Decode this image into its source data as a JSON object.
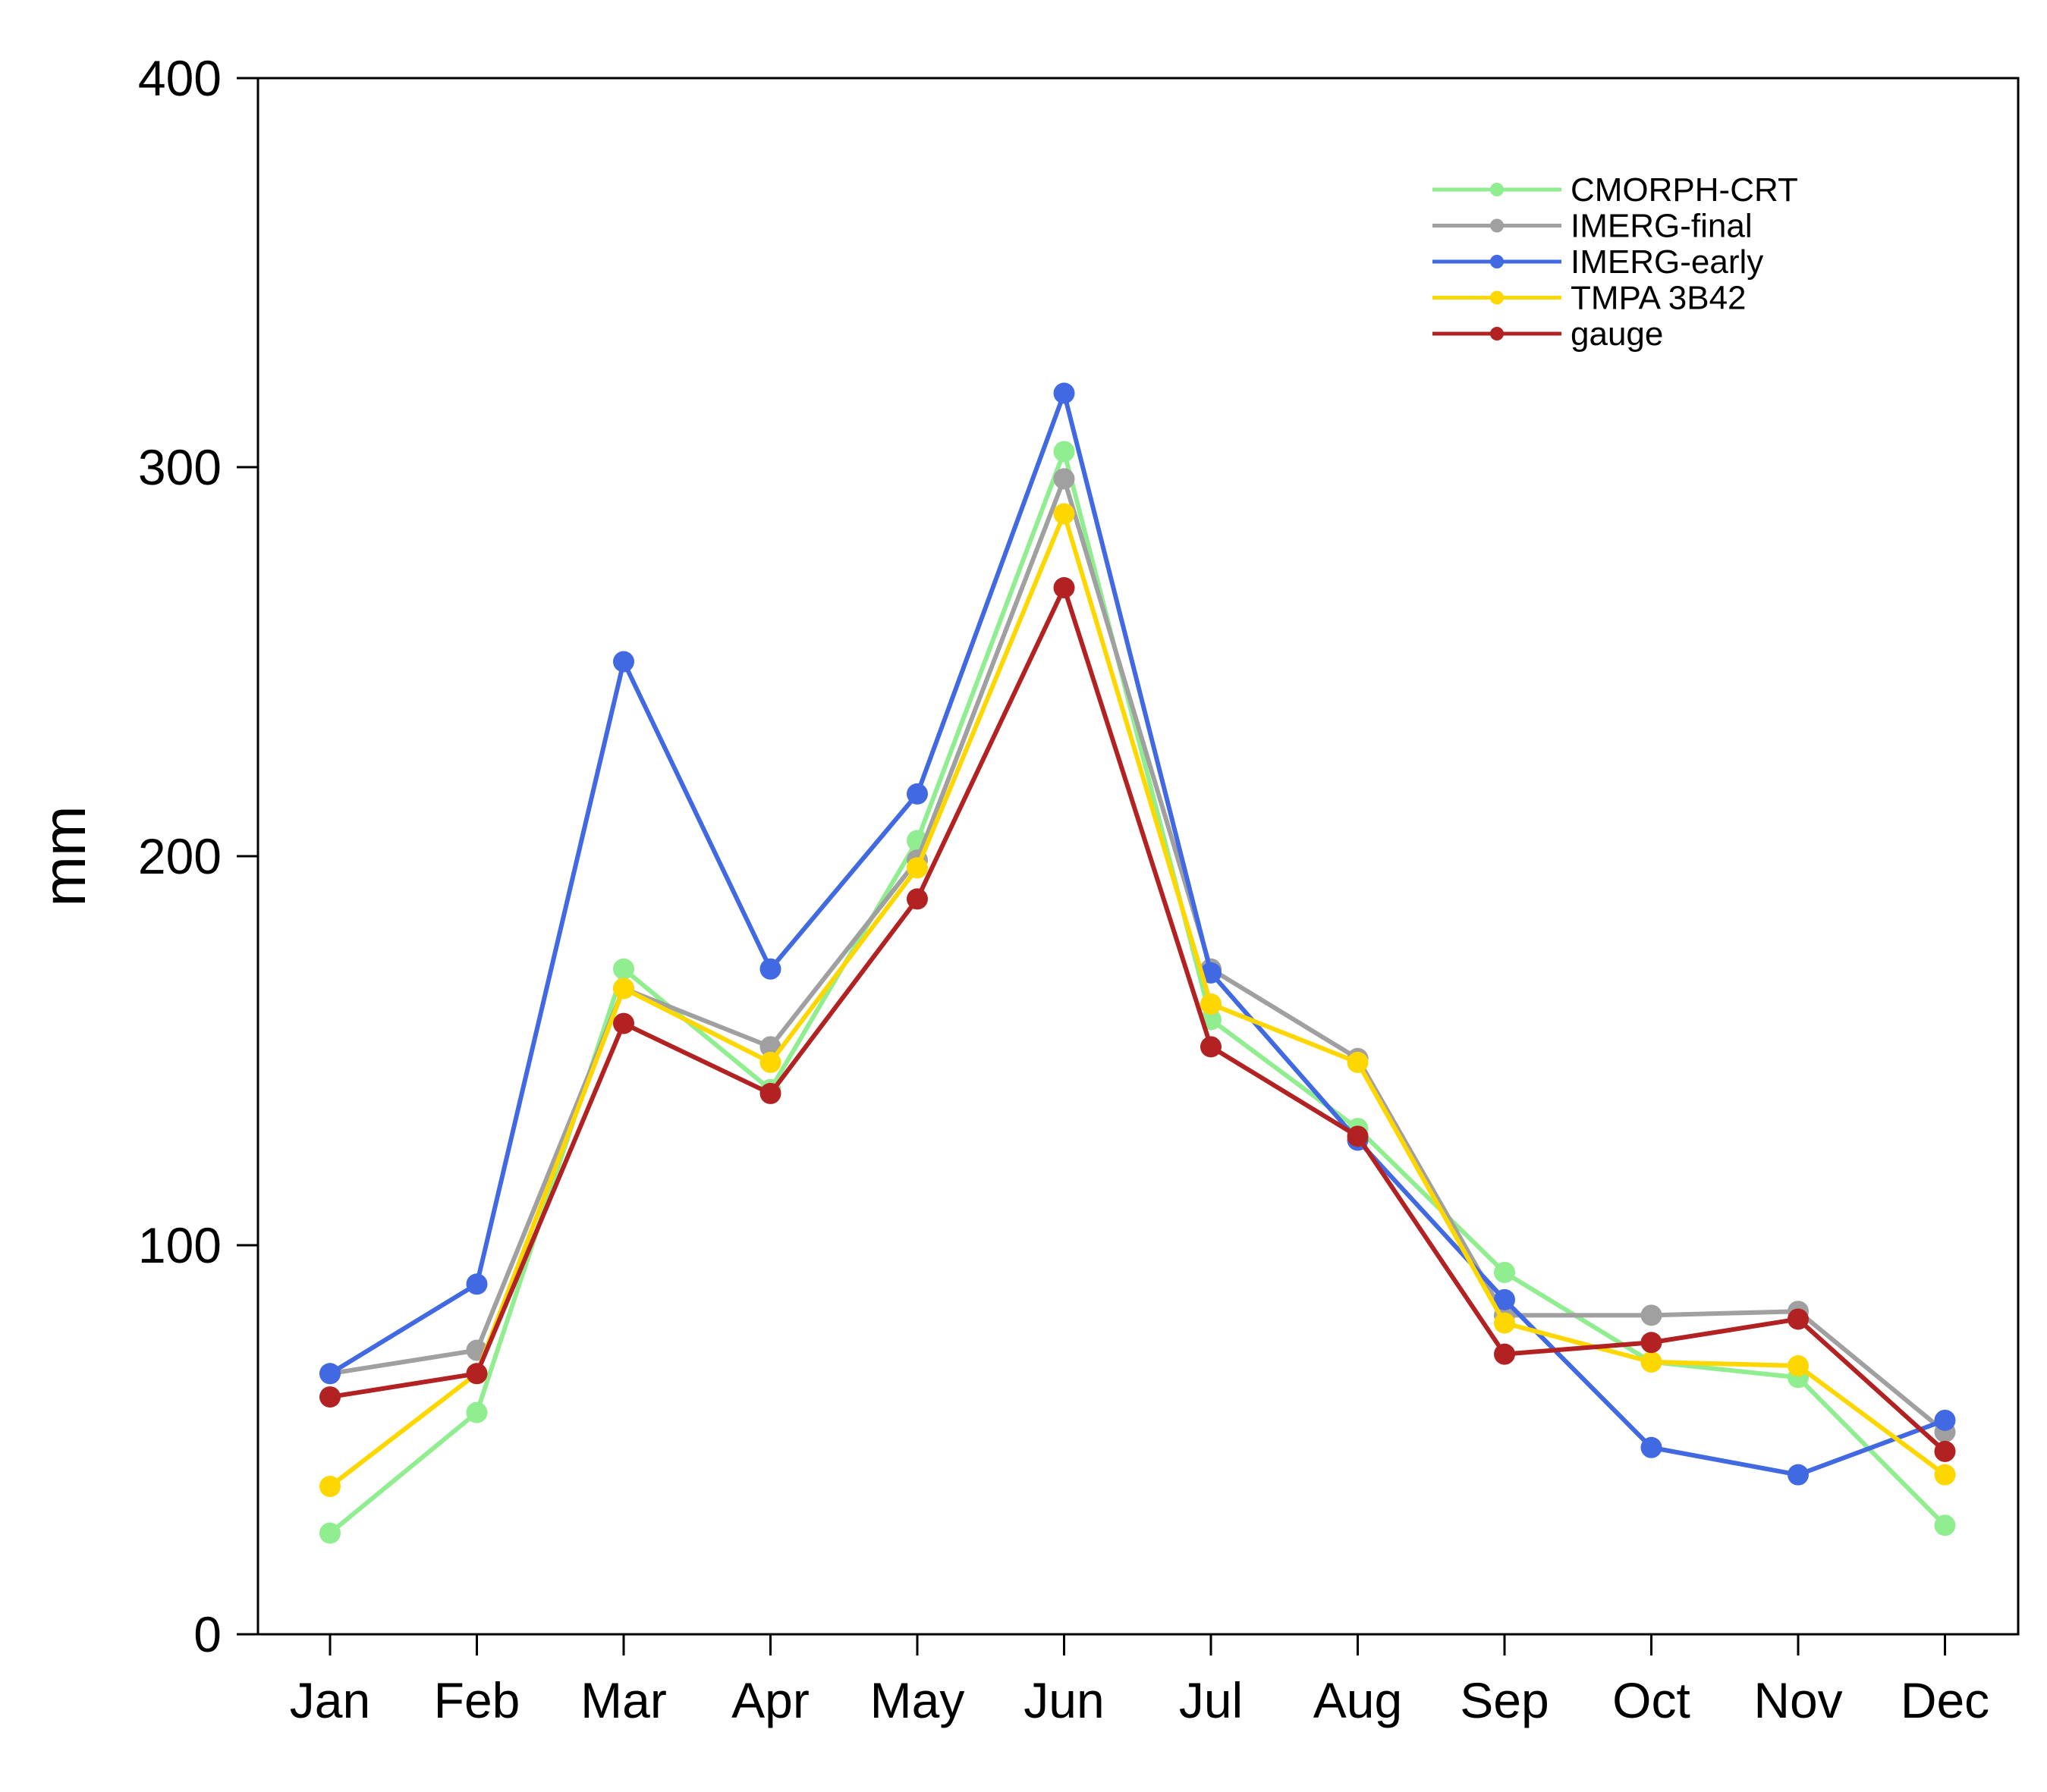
{
  "chart_data": {
    "type": "line",
    "title": "",
    "xlabel": "",
    "ylabel": "mm",
    "ylim": [
      0,
      400
    ],
    "yticks": [
      0,
      100,
      200,
      300,
      400
    ],
    "grid": false,
    "legend_position": "top-right",
    "categories": [
      "Jan",
      "Feb",
      "Mar",
      "Apr",
      "May",
      "Jun",
      "Jul",
      "Aug",
      "Sep",
      "Oct",
      "Nov",
      "Dec"
    ],
    "series": [
      {
        "name": "CMORPH-CRT",
        "color": "#90ee90",
        "values": [
          26,
          57,
          171,
          140,
          204,
          304,
          158,
          130,
          93,
          70,
          66,
          28
        ]
      },
      {
        "name": "IMERG-final",
        "color": "#a0a0a0",
        "values": [
          67,
          73,
          166,
          151,
          199,
          297,
          171,
          148,
          82,
          82,
          83,
          52
        ]
      },
      {
        "name": "IMERG-early",
        "color": "#4169e1",
        "values": [
          67,
          90,
          250,
          171,
          216,
          319,
          170,
          127,
          86,
          48,
          41,
          55
        ]
      },
      {
        "name": "TMPA 3B42",
        "color": "#ffd700",
        "values": [
          38,
          67,
          166,
          147,
          197,
          288,
          162,
          147,
          80,
          70,
          69,
          41
        ]
      },
      {
        "name": "gauge",
        "color": "#b22222",
        "values": [
          61,
          67,
          157,
          139,
          189,
          269,
          151,
          128,
          72,
          75,
          81,
          47
        ]
      }
    ]
  }
}
